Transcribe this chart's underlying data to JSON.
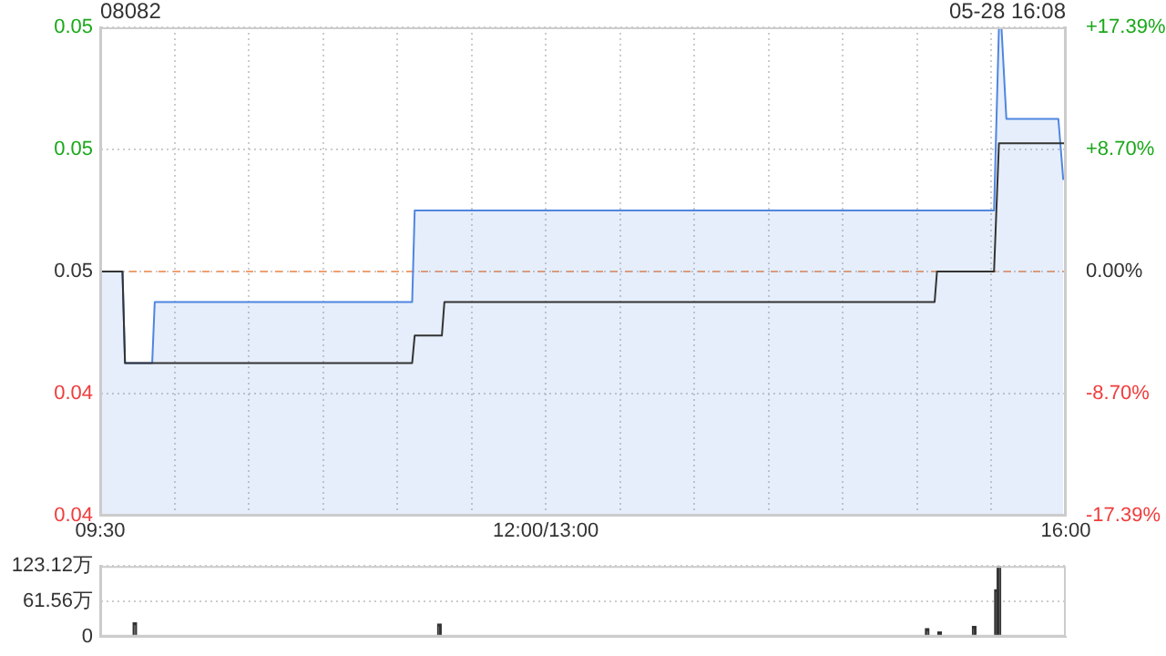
{
  "chart_data": [
    {
      "type": "line",
      "title": "08082",
      "annotations": [
        "05-28 16:08"
      ],
      "series": [
        {
          "type": "area",
          "color": "#4f86e0",
          "x": [
            9.5,
            9.65,
            9.667,
            9.85,
            9.867,
            11.6,
            11.617,
            15.517,
            15.55,
            15.567,
            15.6,
            15.95,
            15.983
          ],
          "values": [
            0.046,
            0.046,
            0.043,
            0.043,
            0.045,
            0.045,
            0.048,
            0.048,
            0.054,
            0.054,
            0.051,
            0.051,
            0.049
          ]
        },
        {
          "type": "line",
          "color": "#333333",
          "x": [
            9.5,
            9.65,
            9.667,
            11.6,
            11.617,
            11.8,
            11.817,
            15.117,
            15.133,
            15.517,
            15.55,
            16
          ],
          "values": [
            0.046,
            0.046,
            0.043,
            0.043,
            0.0439,
            0.0439,
            0.045,
            0.045,
            0.046,
            0.046,
            0.0502,
            0.0502
          ]
        }
      ],
      "xlim": [
        9.5,
        16
      ],
      "xticks": [
        {
          "value": 9.5,
          "label": "09:30"
        },
        {
          "value": 10,
          "label": null
        },
        {
          "value": 10.5,
          "label": null
        },
        {
          "value": 11,
          "label": null
        },
        {
          "value": 11.5,
          "label": null
        },
        {
          "value": 12,
          "label": null
        },
        {
          "value": 12.5,
          "label": "12:00/13:00"
        },
        {
          "value": 13,
          "label": null
        },
        {
          "value": 13.5,
          "label": null
        },
        {
          "value": 14,
          "label": null
        },
        {
          "value": 14.5,
          "label": null
        },
        {
          "value": 15,
          "label": null
        },
        {
          "value": 15.5,
          "label": null
        },
        {
          "value": 16,
          "label": "16:00"
        }
      ],
      "ylim": [
        0.038,
        0.054
      ],
      "yticks": [
        {
          "value": 0.038,
          "label": "0.04"
        },
        {
          "value": 0.042,
          "label": "0.04"
        },
        {
          "value": 0.046,
          "label": "0.05"
        },
        {
          "value": 0.05,
          "label": "0.05"
        },
        {
          "value": 0.054,
          "label": "0.05"
        }
      ],
      "y2lim": [
        -17.39,
        17.39
      ],
      "y2ticks": [
        {
          "value": -17.39,
          "label": "-17.39%"
        },
        {
          "value": -8.7,
          "label": "-8.70%"
        },
        {
          "value": 0,
          "label": "0.00%"
        },
        {
          "value": 8.7,
          "label": "+8.70%"
        },
        {
          "value": 17.39,
          "label": "+17.39%"
        }
      ],
      "ref_lines": [
        {
          "axis": "y",
          "value": 0.046,
          "color": "#f0a070",
          "line_style": "dashed"
        }
      ],
      "grid": true,
      "legend": false
    },
    {
      "type": "bar",
      "x": [
        9.733,
        11.783,
        15.067,
        15.15,
        15.383,
        15.533,
        15.55
      ],
      "values": [
        24,
        22,
        14,
        8,
        18,
        82,
        123.12
      ],
      "color": "#333333",
      "xlim": [
        9.5,
        16
      ],
      "ylim": [
        0,
        123.12
      ],
      "yticks": [
        0,
        {
          "value": 61.56,
          "label": "61.56万"
        },
        {
          "value": 123.12,
          "label": "123.12万"
        }
      ],
      "tick_labels": "y",
      "grid": "y",
      "legend": false
    }
  ]
}
